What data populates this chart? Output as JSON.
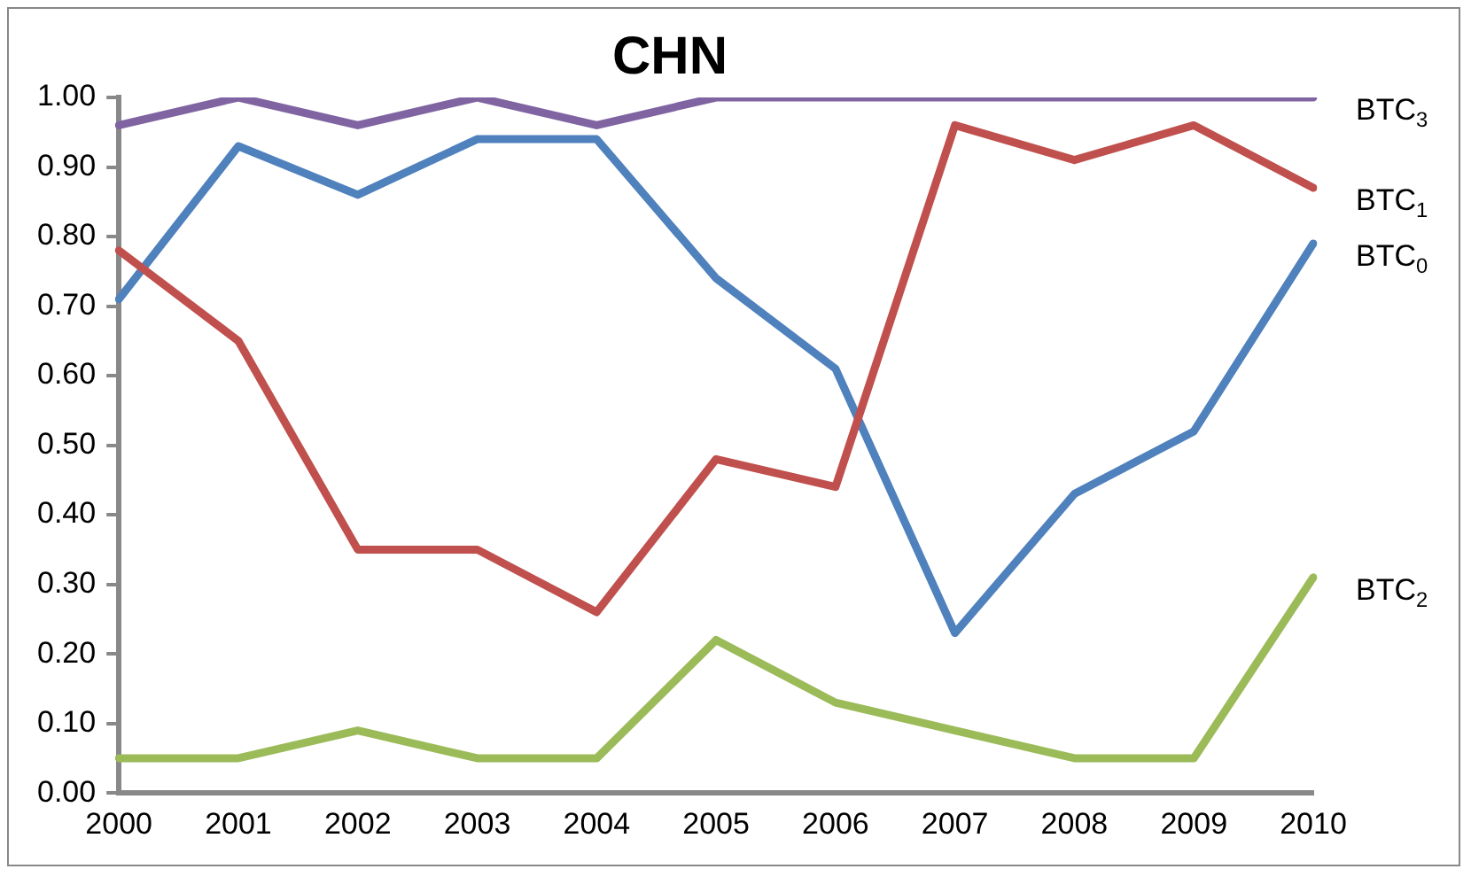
{
  "chart_data": {
    "type": "line",
    "title": "CHN",
    "categories": [
      "2000",
      "2001",
      "2002",
      "2003",
      "2004",
      "2005",
      "2006",
      "2007",
      "2008",
      "2009",
      "2010"
    ],
    "series": [
      {
        "name": "BTC$_{3}$",
        "color": "#8064a2",
        "values": [
          0.96,
          1.0,
          0.96,
          1.0,
          0.96,
          1.0,
          1.0,
          1.0,
          1.0,
          1.0,
          1.0
        ]
      },
      {
        "name": "BTC$_{1}$",
        "color": "#c0504d",
        "values": [
          0.78,
          0.65,
          0.35,
          0.35,
          0.26,
          0.48,
          0.44,
          0.96,
          0.91,
          0.96,
          0.87
        ]
      },
      {
        "name": "BTC$_{0}$",
        "color": "#4f81bd",
        "values": [
          0.71,
          0.93,
          0.86,
          0.94,
          0.94,
          0.74,
          0.61,
          0.23,
          0.43,
          0.52,
          0.79
        ]
      },
      {
        "name": "BTC$_{2}$",
        "color": "#9bbb59",
        "values": [
          0.05,
          0.05,
          0.09,
          0.05,
          0.05,
          0.22,
          0.13,
          0.09,
          0.05,
          0.05,
          0.31
        ]
      }
    ],
    "ylim": [
      0,
      1
    ],
    "yticks": [
      {
        "value": 0,
        "label": "0.00"
      },
      {
        "value": 0.1,
        "label": "0.10"
      },
      {
        "value": 0.2,
        "label": "0.20"
      },
      {
        "value": 0.3,
        "label": "0.30"
      },
      {
        "value": 0.4,
        "label": "0.40"
      },
      {
        "value": 0.5,
        "label": "0.50"
      },
      {
        "value": 0.6,
        "label": "0.60"
      },
      {
        "value": 0.7,
        "label": "0.70"
      },
      {
        "value": 0.8,
        "label": "0.80"
      },
      {
        "value": 0.9,
        "label": "0.90"
      },
      {
        "value": 1,
        "label": "1.00"
      }
    ],
    "grid": false,
    "legend": false,
    "marker": "none",
    "line_style": "solid"
  }
}
